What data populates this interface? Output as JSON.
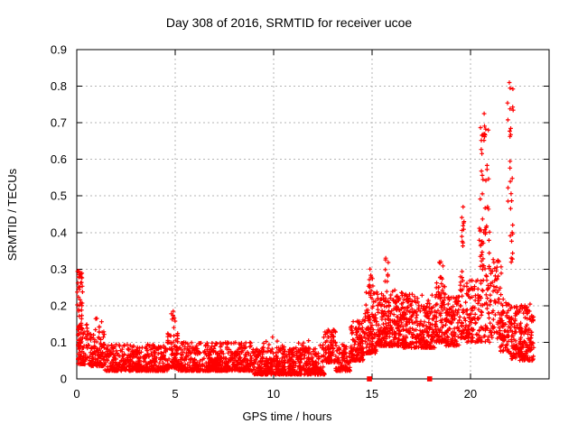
{
  "chart_data": {
    "type": "scatter",
    "title": "Day 308 of 2016, SRMTID for receiver ucoe",
    "xlabel": "GPS time / hours",
    "ylabel": "SRMTID / TECUs",
    "xlim": [
      0,
      24
    ],
    "ylim": [
      0,
      0.9
    ],
    "xticks": [
      0,
      5,
      10,
      15,
      20
    ],
    "yticks": [
      0,
      0.1,
      0.2,
      0.3,
      0.4,
      0.5,
      0.6,
      0.7,
      0.8,
      0.9
    ],
    "grid": "dashed both axes at major ticks",
    "legend": "none",
    "marker": "plus",
    "marker_color": "#ff0000",
    "grid_color": "#b5b5b5",
    "border_color": "#000000",
    "background_color": "#ffffff",
    "description": "Dense scatter of SRMTID values vs GPS time. Quiet low band ~0.02-0.10 TECUs from hours 1-13, initial column up to ~0.30 at hour 0, activity rising after hour 13 to a 0.10-0.25 band, spike columns near hours 14.9, 15.7, 18.5 (~0.30-0.33), 19.6 (~0.47), 20.5-21 (~0.73) and 21.9-22.1 (max ~0.81), tailing off to ~0.05-0.20 by hour 23.2. Two red square markers sit on the x-axis at zero TECUs.",
    "segments_fields": [
      "x0_hours",
      "x1_hours",
      "n_points",
      "y_min",
      "y_max",
      "skew_exponent"
    ],
    "segments": [
      [
        0.02,
        0.3,
        55,
        0.05,
        0.295,
        1.1
      ],
      [
        0.05,
        0.65,
        75,
        0.04,
        0.15,
        1.8
      ],
      [
        0.65,
        1.4,
        110,
        0.035,
        0.13,
        1.9
      ],
      [
        0.9,
        1.35,
        6,
        0.13,
        0.175,
        1.0
      ],
      [
        1.4,
        4.6,
        430,
        0.022,
        0.095,
        2.0
      ],
      [
        4.6,
        5.15,
        85,
        0.03,
        0.125,
        1.9
      ],
      [
        4.8,
        5.0,
        7,
        0.12,
        0.185,
        1.0
      ],
      [
        5.15,
        9.0,
        540,
        0.022,
        0.1,
        2.1
      ],
      [
        9.0,
        12.6,
        540,
        0.012,
        0.085,
        2.0
      ],
      [
        9.0,
        12.6,
        30,
        0.075,
        0.115,
        1.4
      ],
      [
        12.6,
        13.15,
        80,
        0.045,
        0.135,
        1.7
      ],
      [
        13.15,
        13.9,
        105,
        0.022,
        0.095,
        1.9
      ],
      [
        13.9,
        14.6,
        120,
        0.05,
        0.165,
        1.7
      ],
      [
        14.6,
        15.25,
        115,
        0.07,
        0.245,
        1.7
      ],
      [
        14.8,
        15.05,
        8,
        0.24,
        0.3,
        1.0
      ],
      [
        15.25,
        16.6,
        250,
        0.09,
        0.245,
        1.7
      ],
      [
        15.55,
        15.85,
        7,
        0.26,
        0.33,
        1.0
      ],
      [
        16.6,
        18.2,
        265,
        0.085,
        0.235,
        1.7
      ],
      [
        18.2,
        18.75,
        95,
        0.1,
        0.27,
        1.5
      ],
      [
        18.4,
        18.62,
        8,
        0.26,
        0.32,
        1.0
      ],
      [
        18.75,
        19.45,
        110,
        0.09,
        0.225,
        1.6
      ],
      [
        19.45,
        19.8,
        45,
        0.11,
        0.3,
        1.4
      ],
      [
        19.55,
        19.72,
        10,
        0.32,
        0.47,
        1.0
      ],
      [
        19.8,
        20.45,
        95,
        0.1,
        0.27,
        1.5
      ],
      [
        20.45,
        21.05,
        85,
        0.1,
        0.42,
        1.3
      ],
      [
        20.5,
        20.97,
        30,
        0.4,
        0.725,
        1.05
      ],
      [
        21.0,
        21.6,
        65,
        0.11,
        0.33,
        1.5
      ],
      [
        21.5,
        21.98,
        70,
        0.075,
        0.22,
        1.6
      ],
      [
        21.88,
        22.18,
        28,
        0.3,
        0.805,
        1.0
      ],
      [
        22.0,
        22.6,
        95,
        0.055,
        0.2,
        1.6
      ],
      [
        22.5,
        23.22,
        115,
        0.05,
        0.205,
        1.6
      ]
    ],
    "notable_peaks": [
      {
        "x": 0.1,
        "y": 0.295
      },
      {
        "x": 0.12,
        "y": 0.285
      },
      {
        "x": 4.9,
        "y": 0.185
      },
      {
        "x": 14.9,
        "y": 0.3
      },
      {
        "x": 15.7,
        "y": 0.33
      },
      {
        "x": 18.5,
        "y": 0.32
      },
      {
        "x": 19.63,
        "y": 0.47
      },
      {
        "x": 20.7,
        "y": 0.725
      },
      {
        "x": 21.98,
        "y": 0.81
      },
      {
        "x": 22.02,
        "y": 0.795
      }
    ],
    "zero_value_markers_hours": [
      14.87,
      17.93
    ]
  }
}
